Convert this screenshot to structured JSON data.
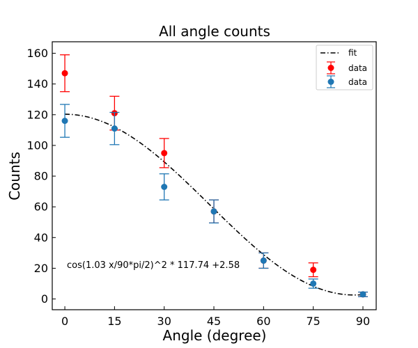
{
  "chart_data": {
    "type": "scatter",
    "title": "All angle counts",
    "xlabel": "Angle (degree)",
    "ylabel": "Counts",
    "xlim": [
      -3.8,
      94.0
    ],
    "ylim": [
      -7.0,
      167.5
    ],
    "xticks": [
      0,
      15,
      30,
      45,
      60,
      75,
      90
    ],
    "yticks": [
      0,
      20,
      40,
      60,
      80,
      100,
      120,
      140,
      160
    ],
    "grid": false,
    "legend_position": "top-right",
    "fit": {
      "name": "fit",
      "style": "dash-dot",
      "color": "#000000",
      "amplitude": 117.74,
      "frequency": 1.03,
      "offset": 2.58,
      "x_range": [
        0,
        90
      ]
    },
    "series": [
      {
        "name": "data",
        "color": "#ff0000",
        "x": [
          0,
          15,
          30,
          45,
          60,
          75,
          90
        ],
        "y": [
          147,
          121,
          95,
          57,
          25,
          19,
          3
        ],
        "yerr": [
          12,
          11,
          9.5,
          7.5,
          5,
          4.5,
          1.5
        ]
      },
      {
        "name": "data",
        "color": "#1f77b4",
        "x": [
          0,
          15,
          30,
          45,
          60,
          75,
          90
        ],
        "y": [
          116,
          111,
          73,
          57,
          25,
          10,
          3
        ],
        "yerr": [
          10.7,
          10.5,
          8.5,
          7.5,
          5,
          3,
          1.5
        ]
      }
    ],
    "annotation": "cos(1.03 x/90*pi/2)^2 * 117.74 +2.58"
  }
}
